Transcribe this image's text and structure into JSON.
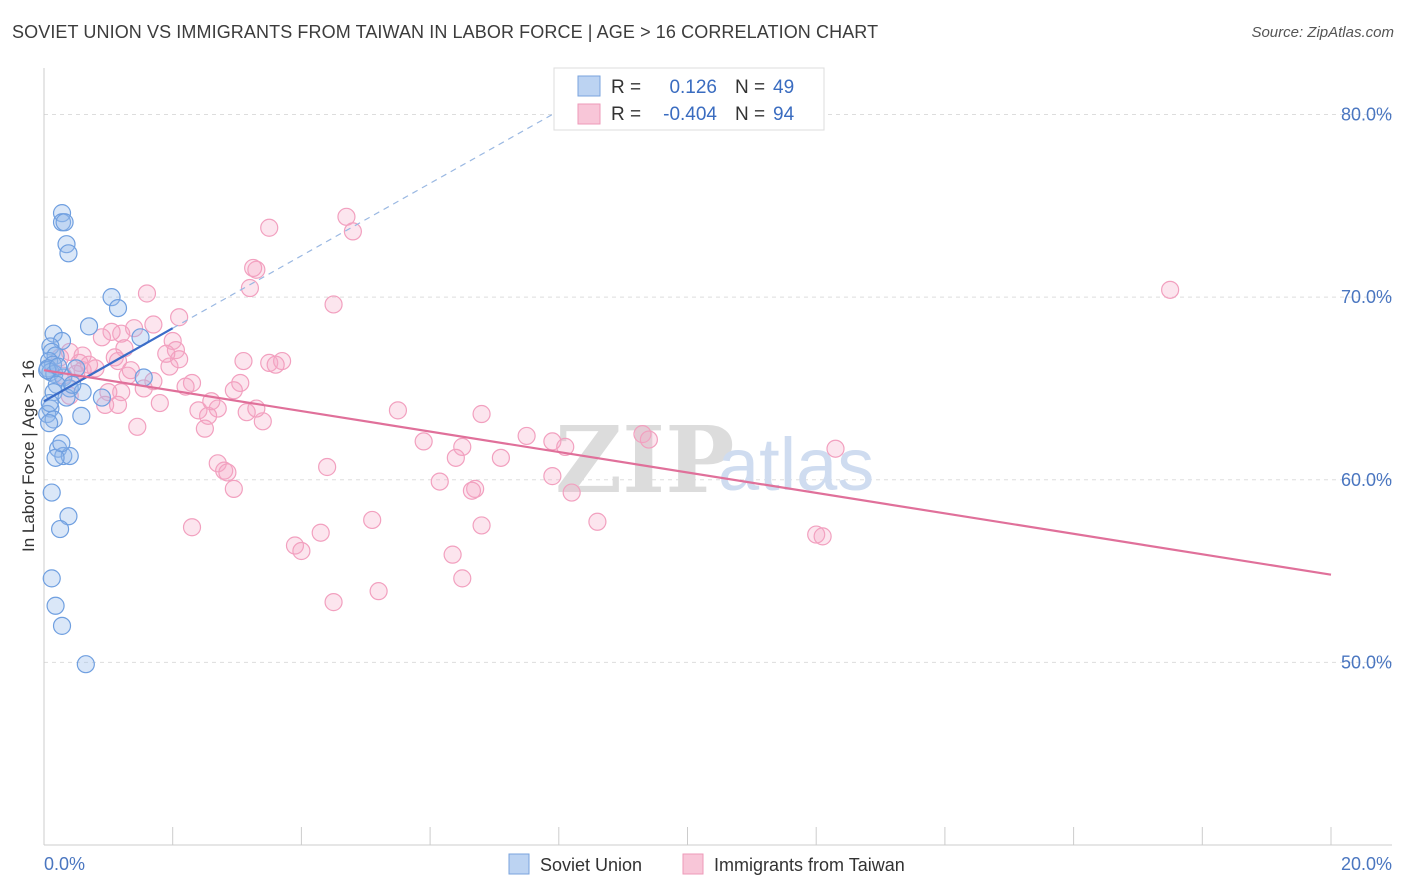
{
  "title": "SOVIET UNION VS IMMIGRANTS FROM TAIWAN IN LABOR FORCE | AGE > 16 CORRELATION CHART",
  "source": "Source: ZipAtlas.com",
  "watermark": {
    "zip": "ZIP",
    "atlas": "atlas"
  },
  "colors": {
    "soviet": "#6f9fe0",
    "taiwan": "#f2a0bf",
    "soviet_line": "#3a6cc8",
    "taiwan_line": "#e0709a",
    "grid": "#dddddd",
    "axis_text": "#4a76c0"
  },
  "legend": {
    "rows": [
      {
        "r_label": "R =",
        "r_value": "0.126",
        "n_label": "N =",
        "n_value": "49"
      },
      {
        "r_label": "R =",
        "r_value": "-0.404",
        "n_label": "N =",
        "n_value": "94"
      }
    ]
  },
  "bottom_legend": [
    "Soviet Union",
    "Immigrants from Taiwan"
  ],
  "chart_data": {
    "type": "scatter",
    "ylabel": "In Labor Force | Age > 16",
    "xlim": [
      0,
      20
    ],
    "ylim": [
      40,
      82
    ],
    "x_tick_labels": [
      {
        "value": 0,
        "label": "0.0%"
      },
      {
        "value": 20,
        "label": "20.0%"
      }
    ],
    "y_tick_labels": [
      {
        "value": 50,
        "label": "50.0%"
      },
      {
        "value": 60,
        "label": "60.0%"
      },
      {
        "value": 70,
        "label": "70.0%"
      },
      {
        "value": 80,
        "label": "80.0%"
      }
    ],
    "grid": true,
    "series": [
      {
        "name": "Soviet Union",
        "trend": {
          "x0": 0.0,
          "y0": 64.3,
          "x1": 2.0,
          "y1": 68.3,
          "dash_x1": 8.0,
          "dash_y1": 80.2
        },
        "points": [
          [
            0.28,
            74.6
          ],
          [
            0.28,
            74.1
          ],
          [
            0.32,
            74.1
          ],
          [
            0.35,
            72.9
          ],
          [
            0.38,
            72.4
          ],
          [
            1.05,
            70.0
          ],
          [
            1.15,
            69.4
          ],
          [
            0.7,
            68.4
          ],
          [
            0.15,
            68.0
          ],
          [
            0.28,
            67.6
          ],
          [
            1.5,
            67.8
          ],
          [
            0.1,
            67.3
          ],
          [
            0.12,
            67.0
          ],
          [
            0.18,
            66.8
          ],
          [
            0.08,
            66.5
          ],
          [
            0.14,
            66.3
          ],
          [
            0.06,
            66.1
          ],
          [
            0.1,
            65.9
          ],
          [
            0.16,
            65.8
          ],
          [
            0.3,
            65.6
          ],
          [
            1.55,
            65.6
          ],
          [
            0.2,
            65.2
          ],
          [
            0.4,
            65.0
          ],
          [
            0.6,
            64.8
          ],
          [
            0.15,
            64.8
          ],
          [
            0.35,
            64.5
          ],
          [
            0.9,
            64.5
          ],
          [
            0.1,
            63.9
          ],
          [
            0.05,
            63.6
          ],
          [
            0.58,
            63.5
          ],
          [
            0.15,
            63.3
          ],
          [
            0.08,
            63.1
          ],
          [
            0.22,
            61.7
          ],
          [
            0.3,
            61.3
          ],
          [
            0.4,
            61.3
          ],
          [
            0.18,
            61.2
          ],
          [
            0.12,
            59.3
          ],
          [
            0.38,
            58.0
          ],
          [
            0.25,
            57.3
          ],
          [
            0.12,
            54.6
          ],
          [
            0.18,
            53.1
          ],
          [
            0.28,
            52.0
          ],
          [
            0.65,
            49.9
          ],
          [
            0.05,
            66.0
          ],
          [
            0.22,
            66.2
          ],
          [
            0.09,
            64.2
          ],
          [
            0.27,
            62.0
          ],
          [
            0.5,
            66.1
          ],
          [
            0.44,
            65.2
          ]
        ]
      },
      {
        "name": "Immigrants from Taiwan",
        "trend": {
          "x0": 0.0,
          "y0": 66.0,
          "x1": 20.0,
          "y1": 54.8
        },
        "points": [
          [
            4.7,
            74.4
          ],
          [
            3.5,
            73.8
          ],
          [
            4.8,
            73.6
          ],
          [
            3.3,
            71.5
          ],
          [
            3.25,
            71.6
          ],
          [
            3.2,
            70.5
          ],
          [
            1.6,
            70.2
          ],
          [
            4.5,
            69.6
          ],
          [
            17.5,
            70.4
          ],
          [
            2.1,
            68.9
          ],
          [
            1.7,
            68.5
          ],
          [
            1.4,
            68.3
          ],
          [
            1.2,
            68.0
          ],
          [
            1.05,
            68.1
          ],
          [
            0.9,
            67.8
          ],
          [
            2.0,
            67.6
          ],
          [
            0.4,
            67.0
          ],
          [
            1.25,
            67.2
          ],
          [
            2.05,
            67.1
          ],
          [
            0.6,
            66.8
          ],
          [
            1.1,
            66.7
          ],
          [
            0.25,
            66.7
          ],
          [
            1.15,
            66.5
          ],
          [
            0.55,
            66.4
          ],
          [
            3.1,
            66.5
          ],
          [
            3.5,
            66.4
          ],
          [
            3.7,
            66.5
          ],
          [
            3.6,
            66.3
          ],
          [
            1.95,
            66.2
          ],
          [
            0.8,
            66.1
          ],
          [
            0.6,
            66.0
          ],
          [
            1.3,
            65.7
          ],
          [
            0.3,
            65.7
          ],
          [
            1.7,
            65.4
          ],
          [
            2.3,
            65.3
          ],
          [
            3.05,
            65.3
          ],
          [
            2.2,
            65.1
          ],
          [
            1.55,
            65.0
          ],
          [
            1.2,
            64.8
          ],
          [
            2.95,
            64.9
          ],
          [
            1.0,
            64.8
          ],
          [
            0.4,
            64.6
          ],
          [
            1.8,
            64.2
          ],
          [
            1.15,
            64.1
          ],
          [
            2.7,
            63.9
          ],
          [
            2.4,
            63.8
          ],
          [
            3.15,
            63.7
          ],
          [
            5.5,
            63.8
          ],
          [
            2.55,
            63.5
          ],
          [
            6.8,
            63.6
          ],
          [
            3.4,
            63.2
          ],
          [
            2.5,
            62.8
          ],
          [
            1.45,
            62.9
          ],
          [
            9.3,
            62.5
          ],
          [
            9.4,
            62.2
          ],
          [
            5.9,
            62.1
          ],
          [
            7.9,
            62.1
          ],
          [
            6.5,
            61.8
          ],
          [
            8.1,
            61.8
          ],
          [
            12.3,
            61.7
          ],
          [
            6.4,
            61.2
          ],
          [
            7.1,
            61.2
          ],
          [
            2.7,
            60.9
          ],
          [
            2.8,
            60.5
          ],
          [
            2.85,
            60.4
          ],
          [
            4.4,
            60.7
          ],
          [
            7.9,
            60.2
          ],
          [
            6.15,
            59.9
          ],
          [
            6.7,
            59.5
          ],
          [
            6.65,
            59.4
          ],
          [
            2.95,
            59.5
          ],
          [
            8.2,
            59.3
          ],
          [
            5.1,
            57.8
          ],
          [
            8.6,
            57.7
          ],
          [
            2.3,
            57.4
          ],
          [
            6.8,
            57.5
          ],
          [
            4.3,
            57.1
          ],
          [
            12.0,
            57.0
          ],
          [
            12.1,
            56.9
          ],
          [
            3.9,
            56.4
          ],
          [
            4.0,
            56.1
          ],
          [
            6.35,
            55.9
          ],
          [
            6.5,
            54.6
          ],
          [
            5.2,
            53.9
          ],
          [
            4.5,
            53.3
          ],
          [
            0.7,
            66.3
          ],
          [
            2.1,
            66.6
          ],
          [
            1.35,
            66.0
          ],
          [
            0.95,
            64.1
          ],
          [
            2.6,
            64.3
          ],
          [
            0.5,
            65.8
          ],
          [
            1.9,
            66.9
          ],
          [
            3.3,
            63.9
          ],
          [
            7.5,
            62.4
          ]
        ]
      }
    ]
  }
}
